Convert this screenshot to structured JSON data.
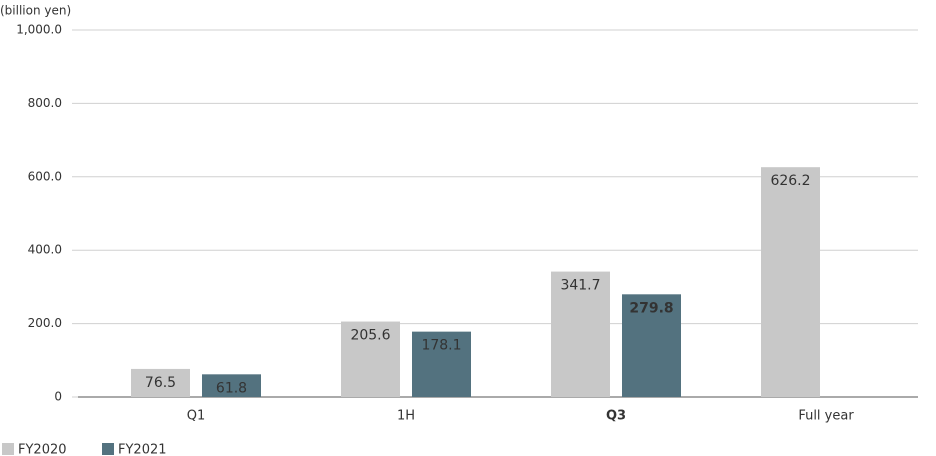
{
  "chart_data": {
    "type": "bar",
    "unit_label": "(billion yen)",
    "categories": [
      "Q1",
      "1H",
      "Q3",
      "Full year"
    ],
    "series": [
      {
        "name": "FY2020",
        "color": "#c8c8c8",
        "values": [
          76.5,
          205.6,
          341.7,
          626.2
        ]
      },
      {
        "name": "FY2021",
        "color": "#53727f",
        "values": [
          61.8,
          178.1,
          279.8,
          null
        ]
      }
    ],
    "ylim": [
      0,
      1000
    ],
    "yticks": [
      0,
      {
        "value": 200,
        "label": "200.0"
      },
      {
        "value": 400,
        "label": "400.0"
      },
      {
        "value": 600,
        "label": "600.0"
      },
      {
        "value": 800,
        "label": "800.0"
      },
      {
        "value": 1000,
        "label": "1,000.0"
      }
    ],
    "grid": true,
    "legend": "bottom-left"
  }
}
